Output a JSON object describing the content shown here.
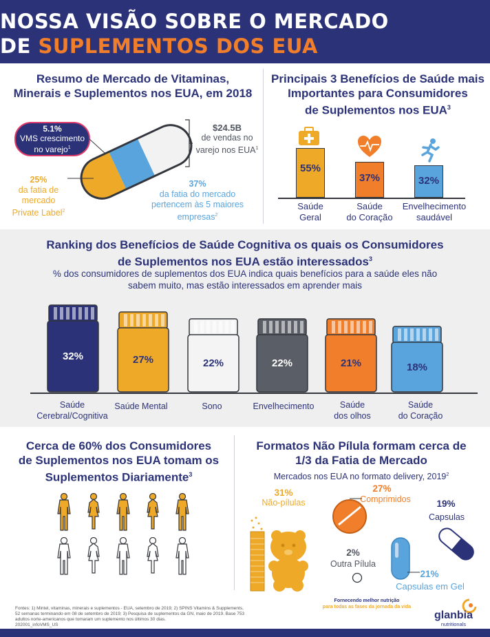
{
  "header": {
    "title_line1": "NOSSA VISÃO SOBRE O MERCADO",
    "title_line2_prefix": "DE",
    "title_line2_highlight": "SUPLEMENTOS DOS EUA"
  },
  "market_summary": {
    "title_l1": "Resumo de Mercado de Vitaminas,",
    "title_l2": "Minerais e Suplementos nos EUA, em 2018",
    "growth_pct": "5.1%",
    "growth_l1": "VMS crescimento",
    "growth_l2": "no varejo",
    "growth_sup": "1",
    "sales_value": "$24.5B",
    "sales_l1": "de vendas no",
    "sales_l2": "varejo nos EUA",
    "sales_sup": "1",
    "private_pct": "25%",
    "private_l1": "da fatia de",
    "private_l2": "mercado",
    "private_l3": "Private Label",
    "private_sup": "2",
    "top5_pct": "37%",
    "top5_l1": "da fatia do mercado",
    "top5_l2": "pertencem às 5 maiores",
    "top5_l3": "empresas",
    "top5_sup": "2"
  },
  "top_benefits": {
    "title_l1": "Principais 3 Benefícios de Saúde mais",
    "title_l2": "Importantes para Consumidores",
    "title_l3": "de Suplementos nos EUA",
    "title_sup": "3",
    "bars": [
      {
        "value": "55%",
        "label_l1": "Saúde",
        "label_l2": "Geral",
        "color": "#efa928",
        "icon": "first-aid-kit-icon"
      },
      {
        "value": "37%",
        "label_l1": "Saúde",
        "label_l2": "do Coração",
        "color": "#f07e2b",
        "icon": "heart-pulse-icon"
      },
      {
        "value": "32%",
        "label_l1": "Envelhecimento",
        "label_l2": "saudável",
        "color": "#5aa4de",
        "icon": "running-person-icon"
      }
    ]
  },
  "cognitive": {
    "title_l1": "Ranking dos Benefícios de Saúde Cognitiva os quais os Consumidores",
    "title_l2": "de Suplementos nos EUA estão interessados",
    "title_sup": "3",
    "subtitle_l1": "% dos consumidores de suplementos dos EUA indica quais benefícios para a saúde eles não",
    "subtitle_l2": "sabem muito, mas estão interessados em aprender mais",
    "jars": [
      {
        "value": "32%",
        "label_l1": "Saúde",
        "label_l2": "Cerebral/Cognitiva",
        "color": "#2b3278",
        "text_color": "#ffffff"
      },
      {
        "value": "27%",
        "label_l1": "Saúde Mental",
        "label_l2": "",
        "color": "#efa928",
        "text_color": "#2b3278"
      },
      {
        "value": "22%",
        "label_l1": "Sono",
        "label_l2": "",
        "color": "#f4f4f4",
        "text_color": "#2b3278"
      },
      {
        "value": "22%",
        "label_l1": "Envelhecimento",
        "label_l2": "",
        "color": "#5a5e66",
        "text_color": "#ffffff"
      },
      {
        "value": "21%",
        "label_l1": "Saúde",
        "label_l2": "dos olhos",
        "color": "#f07e2b",
        "text_color": "#2b3278"
      },
      {
        "value": "18%",
        "label_l1": "Saúde",
        "label_l2": "do Coração",
        "color": "#5aa4de",
        "text_color": "#2b3278"
      }
    ]
  },
  "daily": {
    "title_l1": "Cerca de 60% dos Consumidores",
    "title_l2": "de Suplementos nos EUA tomam os",
    "title_l3": "Suplementos Diariamente",
    "title_sup": "3"
  },
  "formats": {
    "title_l1": "Formatos Não Pílula formam cerca de",
    "title_l2": "1/3 da Fatia de Mercado",
    "subtitle": "Mercados nos EUA no formato delivery, 2019",
    "subtitle_sup": "2",
    "non_pill_pct": "31%",
    "non_pill_label": "Não-pílulas",
    "tablets_pct": "27%",
    "tablets_label": "Comprimidos",
    "capsules_pct": "19%",
    "capsules_label": "Capsulas",
    "other_pct": "2%",
    "other_label": "Outra Pílula",
    "softgel_pct": "21%",
    "softgel_label": "Capsulas em Gel"
  },
  "footer": {
    "sources_l1": "Fontes: 1) Mintel, vitaminas, minerais e suplementos - EUA, setembro de 2019; 2) SPINS Vitamins & Supplements,",
    "sources_l2": "52 semanas terminando em 08 de setembro de 2019; 3) Pesquisa de suplementos da GN, maio de 2019. Base 753",
    "sources_l3": "adultos norte-americanos que tomaram um suplemento nos últimos 30 dias.",
    "code": "202001_infoVMS_US",
    "tagline_l1": "Fornecendo melhor nutrição",
    "tagline_l2": "para todas as fases da jornada da vida",
    "brand": "glanbia",
    "brand_sub": "nutritionals"
  }
}
